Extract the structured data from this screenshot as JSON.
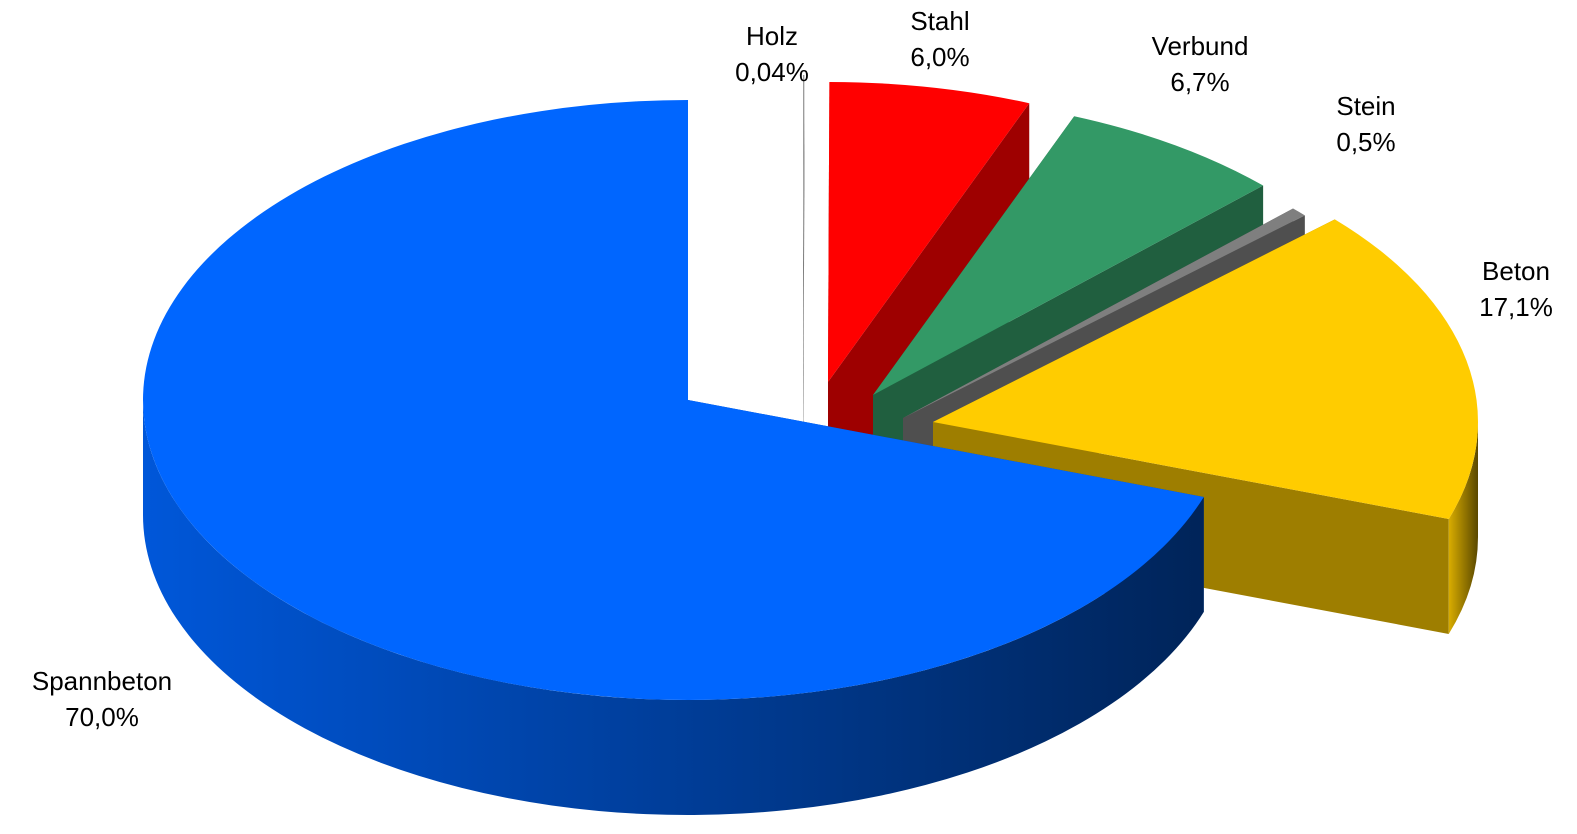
{
  "chart_data": {
    "type": "pie",
    "title": "",
    "style": "3d-exploded",
    "slices": [
      {
        "label": "Spannbeton",
        "value": 70.0,
        "value_text": "70,0%",
        "color": "#0066FF"
      },
      {
        "label": "Holz",
        "value": 0.04,
        "value_text": "0,04%",
        "color": "#9C9C9C"
      },
      {
        "label": "Stahl",
        "value": 6.0,
        "value_text": "6,0%",
        "color": "#FF0000"
      },
      {
        "label": "Verbund",
        "value": 6.7,
        "value_text": "6,7%",
        "color": "#339966"
      },
      {
        "label": "Stein",
        "value": 0.5,
        "value_text": "0,5%",
        "color": "#7F7F7F"
      },
      {
        "label": "Beton",
        "value": 17.1,
        "value_text": "17,1%",
        "color": "#FFCC00"
      }
    ]
  }
}
